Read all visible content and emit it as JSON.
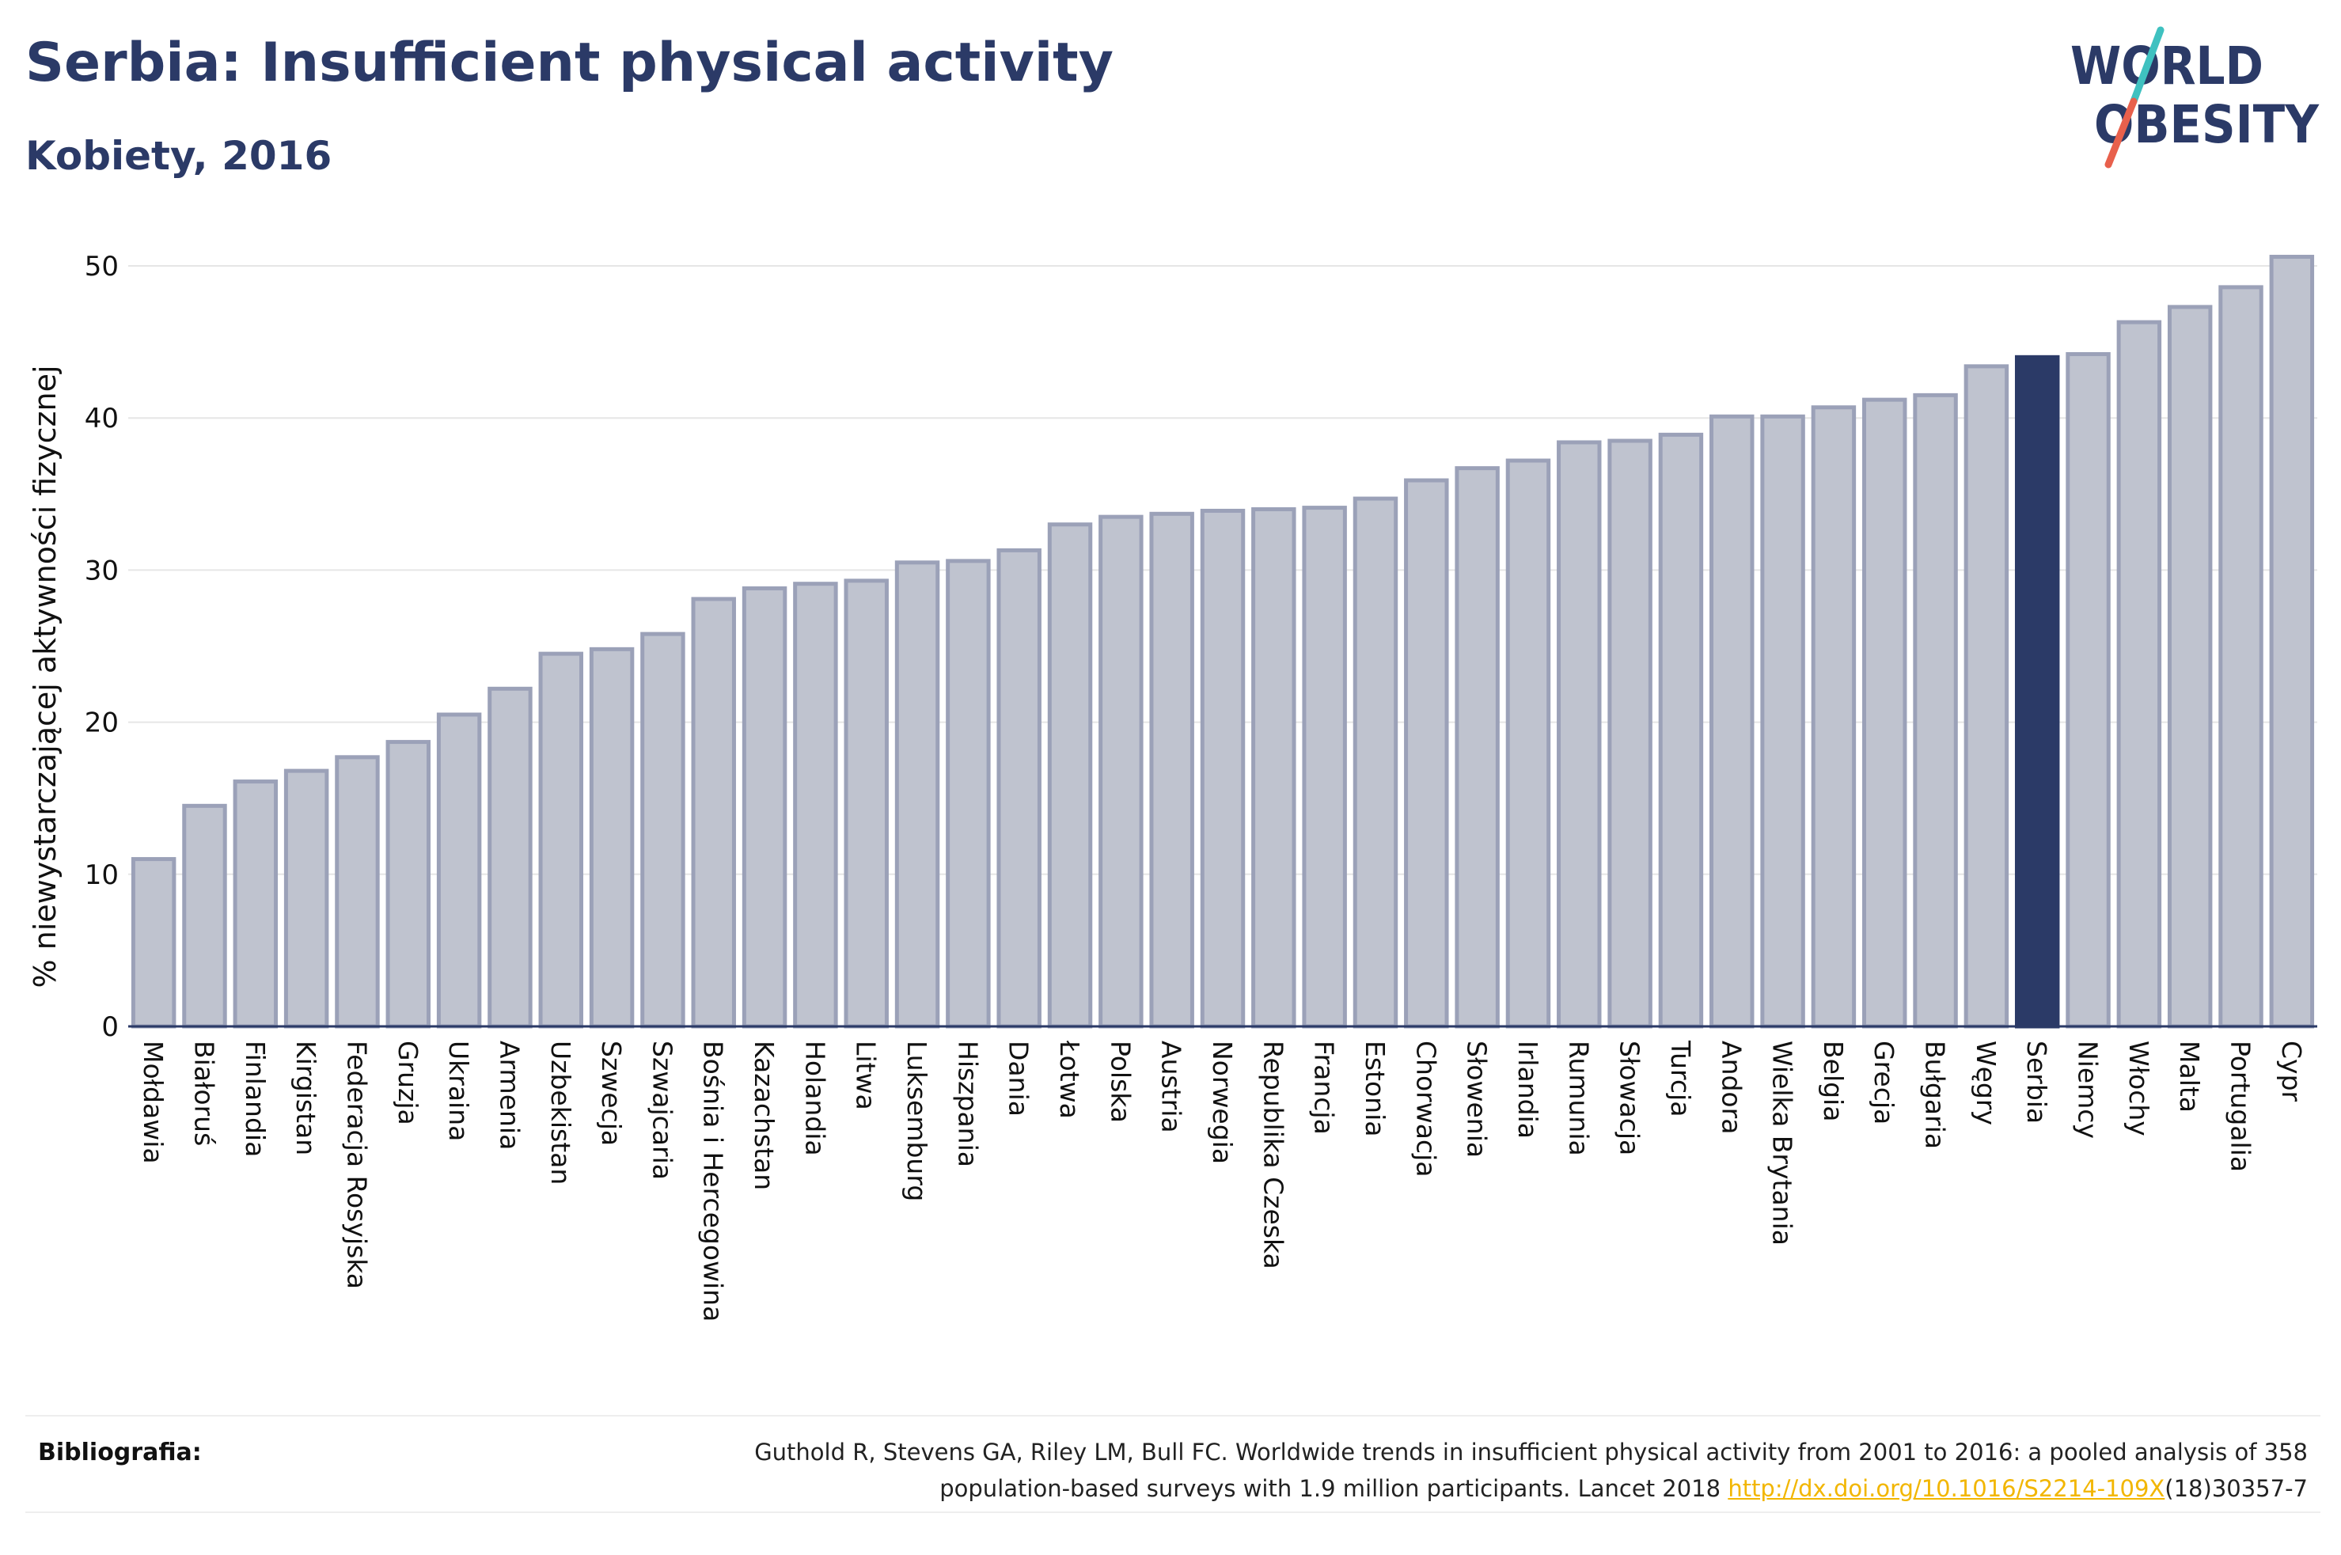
{
  "title": "Serbia: Insufficient physical activity",
  "subtitle": "Kobiety, 2016",
  "logo": {
    "line1": "WORLD",
    "line2": "OBESITY",
    "accent_teal": "#3fc1c0",
    "accent_red": "#e8604c",
    "text_color": "#2b3a67"
  },
  "chart_data": {
    "type": "bar",
    "ylabel": "% niewystarczającej aktywności fizycznej",
    "xlabel": "",
    "ylim": [
      0,
      52
    ],
    "yticks": [
      0,
      10,
      20,
      30,
      40,
      50
    ],
    "grid": true,
    "highlight": "Serbia",
    "colors": {
      "bar": "#bfc3cf",
      "bar_border": "#9ba1b8",
      "highlight": "#2b3a67",
      "grid": "#e6e6e6",
      "axis": "#2b3a67"
    },
    "categories": [
      "Mołdawia",
      "Białoruś",
      "Finlandia",
      "Kirgistan",
      "Federacja Rosyjska",
      "Gruzja",
      "Ukraina",
      "Armenia",
      "Uzbekistan",
      "Szwecja",
      "Szwajcaria",
      "Bośnia i Hercegowina",
      "Kazachstan",
      "Holandia",
      "Litwa",
      "Luksemburg",
      "Hiszpania",
      "Dania",
      "Łotwa",
      "Polska",
      "Austria",
      "Norwegia",
      "Republika Czeska",
      "Francja",
      "Estonia",
      "Chorwacja",
      "Słowenia",
      "Irlandia",
      "Rumunia",
      "Słowacja",
      "Turcja",
      "Andora",
      "Wielka Brytania",
      "Belgia",
      "Grecja",
      "Bułgaria",
      "Węgry",
      "Serbia",
      "Niemcy",
      "Włochy",
      "Malta",
      "Portugalia",
      "Cypr"
    ],
    "values": [
      11.0,
      14.5,
      16.1,
      16.8,
      17.7,
      18.7,
      20.5,
      22.2,
      24.5,
      24.8,
      25.8,
      28.1,
      28.8,
      29.1,
      29.3,
      30.5,
      30.6,
      31.3,
      33.0,
      33.5,
      33.7,
      33.9,
      34.0,
      34.1,
      34.7,
      35.9,
      36.7,
      37.2,
      38.4,
      38.5,
      38.9,
      40.1,
      40.1,
      40.7,
      41.2,
      41.5,
      43.4,
      44.0,
      44.2,
      46.3,
      47.3,
      48.6,
      50.6
    ]
  },
  "bibliography": {
    "label": "Bibliografia:",
    "line1": "Guthold R, Stevens GA, Riley LM, Bull FC. Worldwide trends in insufficient physical activity from 2001 to 2016: a pooled analysis of 358",
    "line2_prefix": "population-based surveys with 1.9 million participants. Lancet 2018 ",
    "link_text": "http://dx.doi.org/10.1016/S2214-109X",
    "line2_suffix": "(18)30357-7"
  }
}
